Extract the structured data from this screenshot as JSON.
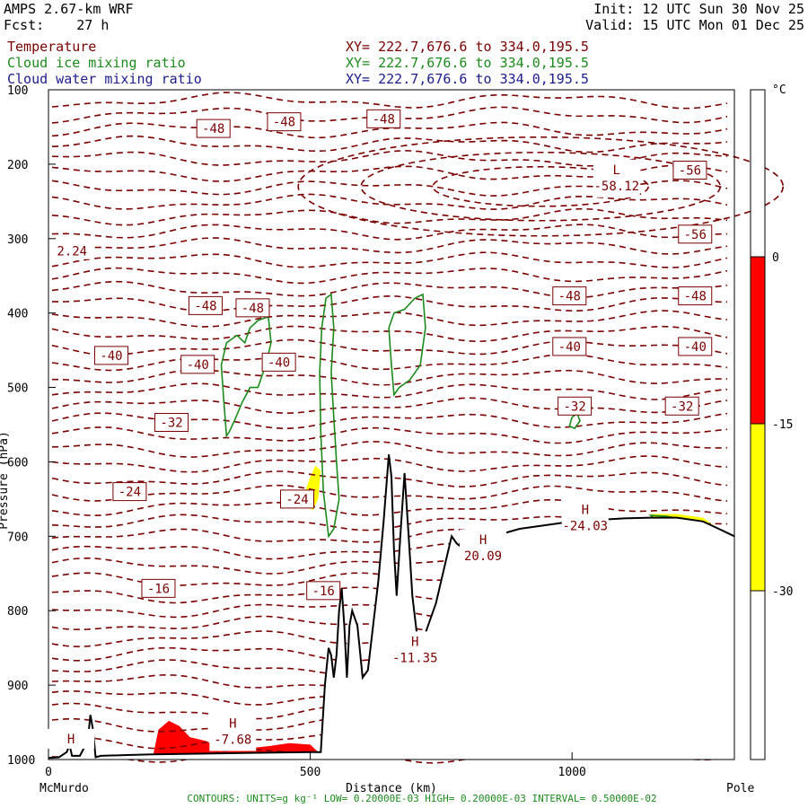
{
  "header": {
    "model": "AMPS 2.67-km WRF",
    "forecast": "Fcst:    27 h",
    "init": "Init: 12 UTC Sun 30 Nov 25",
    "valid": "Valid: 15 UTC Mon 01 Dec 25",
    "fields": [
      {
        "name": "Temperature",
        "xy": "XY= 222.7,676.6 to 334.0,195.5",
        "color": "#7a0000"
      },
      {
        "name": "Cloud ice mixing ratio",
        "xy": "XY= 222.7,676.6 to 334.0,195.5",
        "color": "#1c8a1c"
      },
      {
        "name": "Cloud water mixing ratio",
        "xy": "XY= 222.7,676.6 to 334.0,195.5",
        "color": "#1c1c8c"
      }
    ]
  },
  "footer": {
    "contours": "CONTOURS:  UNITS=g kg⁻¹  LOW= 0.20000E-03  HIGH= 0.20000E-03  INTERVAL=  0.50000E-02",
    "left_end": "McMurdo",
    "right_end": "Pole"
  },
  "colorbar": {
    "unit": "°C",
    "levels": [
      "0",
      "-15",
      "-30"
    ],
    "colors": {
      "red": "#ff0000",
      "yellow": "#ffff00",
      "white": "#ffffff"
    }
  },
  "colors": {
    "temperature": "#7a0000",
    "cloud_ice": "#1c8a1c",
    "cloud_water": "#1c1c8c",
    "terrain": "#000000",
    "fill_warm": "#ff0000",
    "fill_cold": "#ffff00"
  },
  "chart_data": {
    "type": "cross-section contour",
    "xlabel": "Distance (km)",
    "ylabel": "Pressure (hPa)",
    "xlim": [
      0,
      1310
    ],
    "ylim": [
      1000,
      100
    ],
    "x_ticks": [
      0,
      500,
      1000
    ],
    "y_ticks": [
      100,
      200,
      300,
      400,
      500,
      600,
      700,
      800,
      900,
      1000
    ],
    "contour_labels": [
      {
        "text": "-48",
        "x": 315,
        "p": 152
      },
      {
        "text": "-48",
        "x": 450,
        "p": 143
      },
      {
        "text": "-48",
        "x": 640,
        "p": 139
      },
      {
        "text": "-56",
        "x": 1225,
        "p": 208
      },
      {
        "text": "-56",
        "x": 1235,
        "p": 294
      },
      {
        "text": "-48",
        "x": 300,
        "p": 390
      },
      {
        "text": "-48",
        "x": 390,
        "p": 393
      },
      {
        "text": "-48",
        "x": 995,
        "p": 377
      },
      {
        "text": "-48",
        "x": 1235,
        "p": 377
      },
      {
        "text": "-40",
        "x": 120,
        "p": 457
      },
      {
        "text": "-40",
        "x": 285,
        "p": 469
      },
      {
        "text": "-40",
        "x": 440,
        "p": 466
      },
      {
        "text": "-40",
        "x": 995,
        "p": 445
      },
      {
        "text": "-40",
        "x": 1235,
        "p": 445
      },
      {
        "text": "-32",
        "x": 235,
        "p": 547
      },
      {
        "text": "-32",
        "x": 1005,
        "p": 525
      },
      {
        "text": "-32",
        "x": 1210,
        "p": 525
      },
      {
        "text": "-24",
        "x": 155,
        "p": 640
      },
      {
        "text": "-24",
        "x": 475,
        "p": 650
      },
      {
        "text": "-16",
        "x": 210,
        "p": 770
      },
      {
        "text": "-16",
        "x": 525,
        "p": 773
      }
    ],
    "extrema": [
      {
        "label": "L",
        "value": "-58.12",
        "x": 1085,
        "p": 218
      },
      {
        "label": "H",
        "value": "-24.03",
        "x": 1025,
        "p": 675
      },
      {
        "label": "H",
        "value": "20.09",
        "x": 830,
        "p": 715
      },
      {
        "label": "H",
        "value": "-11.35",
        "x": 700,
        "p": 852
      },
      {
        "label": "H",
        "value": "-7.68",
        "x": 352,
        "p": 962
      },
      {
        "label": "H",
        "value": "",
        "x": 43,
        "p": 983
      }
    ],
    "edge_label": {
      "text": "2.24",
      "x": 45,
      "p": 318
    },
    "terrain": [
      [
        0,
        998
      ],
      [
        20,
        997
      ],
      [
        35,
        990
      ],
      [
        40,
        980
      ],
      [
        45,
        995
      ],
      [
        60,
        995
      ],
      [
        75,
        975
      ],
      [
        80,
        940
      ],
      [
        85,
        960
      ],
      [
        90,
        997
      ],
      [
        100,
        995
      ],
      [
        150,
        994
      ],
      [
        200,
        993
      ],
      [
        300,
        992
      ],
      [
        400,
        991
      ],
      [
        500,
        990
      ],
      [
        520,
        990
      ],
      [
        528,
        900
      ],
      [
        535,
        850
      ],
      [
        540,
        860
      ],
      [
        545,
        890
      ],
      [
        550,
        860
      ],
      [
        555,
        800
      ],
      [
        560,
        770
      ],
      [
        565,
        820
      ],
      [
        570,
        890
      ],
      [
        575,
        820
      ],
      [
        580,
        800
      ],
      [
        590,
        820
      ],
      [
        600,
        890
      ],
      [
        610,
        880
      ],
      [
        620,
        820
      ],
      [
        630,
        760
      ],
      [
        640,
        680
      ],
      [
        650,
        590
      ],
      [
        655,
        620
      ],
      [
        660,
        720
      ],
      [
        665,
        780
      ],
      [
        672,
        700
      ],
      [
        680,
        615
      ],
      [
        688,
        700
      ],
      [
        695,
        780
      ],
      [
        705,
        840
      ],
      [
        720,
        830
      ],
      [
        740,
        790
      ],
      [
        760,
        730
      ],
      [
        770,
        700
      ],
      [
        780,
        710
      ],
      [
        800,
        720
      ],
      [
        815,
        715
      ],
      [
        830,
        720
      ],
      [
        850,
        700
      ],
      [
        900,
        690
      ],
      [
        1000,
        680
      ],
      [
        1100,
        676
      ],
      [
        1150,
        675
      ],
      [
        1200,
        675
      ],
      [
        1250,
        680
      ],
      [
        1280,
        690
      ],
      [
        1310,
        700
      ]
    ],
    "ice_contours": [
      [
        [
          340,
          565
        ],
        [
          335,
          520
        ],
        [
          330,
          470
        ],
        [
          340,
          440
        ],
        [
          360,
          430
        ],
        [
          375,
          440
        ],
        [
          385,
          420
        ],
        [
          400,
          410
        ],
        [
          420,
          405
        ],
        [
          425,
          440
        ],
        [
          415,
          470
        ],
        [
          400,
          500
        ],
        [
          385,
          500
        ],
        [
          370,
          520
        ],
        [
          355,
          545
        ],
        [
          345,
          560
        ]
      ],
      [
        [
          535,
          700
        ],
        [
          525,
          640
        ],
        [
          520,
          560
        ],
        [
          518,
          480
        ],
        [
          522,
          420
        ],
        [
          530,
          380
        ],
        [
          540,
          375
        ],
        [
          545,
          420
        ],
        [
          540,
          480
        ],
        [
          545,
          540
        ],
        [
          550,
          600
        ],
        [
          555,
          650
        ],
        [
          545,
          690
        ]
      ],
      [
        [
          660,
          510
        ],
        [
          655,
          470
        ],
        [
          650,
          420
        ],
        [
          660,
          400
        ],
        [
          680,
          395
        ],
        [
          700,
          380
        ],
        [
          715,
          375
        ],
        [
          720,
          420
        ],
        [
          710,
          470
        ],
        [
          690,
          490
        ],
        [
          670,
          500
        ]
      ],
      [
        [
          995,
          552
        ],
        [
          1000,
          540
        ],
        [
          1010,
          535
        ],
        [
          1015,
          545
        ],
        [
          1005,
          555
        ]
      ],
      [
        [
          1150,
          672
        ],
        [
          1180,
          673
        ],
        [
          1220,
          678
        ],
        [
          1250,
          683
        ],
        [
          1230,
          690
        ],
        [
          1190,
          684
        ],
        [
          1160,
          678
        ]
      ]
    ],
    "warm_fill": [
      [
        [
          200,
          994
        ],
        [
          210,
          960
        ],
        [
          230,
          948
        ],
        [
          250,
          955
        ],
        [
          270,
          970
        ],
        [
          300,
          975
        ],
        [
          330,
          985
        ],
        [
          380,
          985
        ],
        [
          420,
          982
        ],
        [
          460,
          978
        ],
        [
          500,
          980
        ],
        [
          515,
          990
        ],
        [
          500,
          994
        ],
        [
          300,
          994
        ]
      ]
    ],
    "cold_fill": [
      [
        [
          490,
          640
        ],
        [
          500,
          620
        ],
        [
          510,
          605
        ],
        [
          520,
          612
        ],
        [
          515,
          650
        ],
        [
          505,
          665
        ],
        [
          495,
          660
        ]
      ],
      [
        [
          1150,
          670
        ],
        [
          1200,
          670
        ],
        [
          1250,
          675
        ],
        [
          1290,
          695
        ],
        [
          1260,
          692
        ],
        [
          1200,
          682
        ],
        [
          1160,
          676
        ]
      ]
    ]
  }
}
